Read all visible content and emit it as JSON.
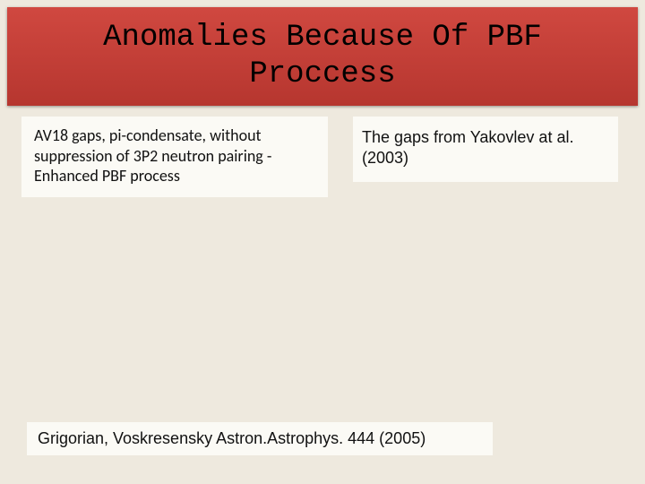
{
  "colors": {
    "page_bg": "#eee9de",
    "card_bg": "#fbfaf5",
    "title_bg_top": "#d04840",
    "title_bg_bottom": "#b6362f",
    "text": "#111111"
  },
  "title": {
    "text": "Anomalies Because Of PBF Proccess",
    "font_family": "Courier New, monospace",
    "font_size_pt": 26
  },
  "left_box": {
    "text": "AV18 gaps, pi-condensate, without suppression of 3P2 neutron pairing - Enhanced PBF process",
    "font_size_pt": 13
  },
  "right_box": {
    "text": " The gaps from Yakovlev at al. (2003)",
    "font_size_pt": 13
  },
  "citation": {
    "text": "Grigorian, Voskresensky  Astron.Astrophys. 444 (2005)",
    "font_size_pt": 13
  }
}
